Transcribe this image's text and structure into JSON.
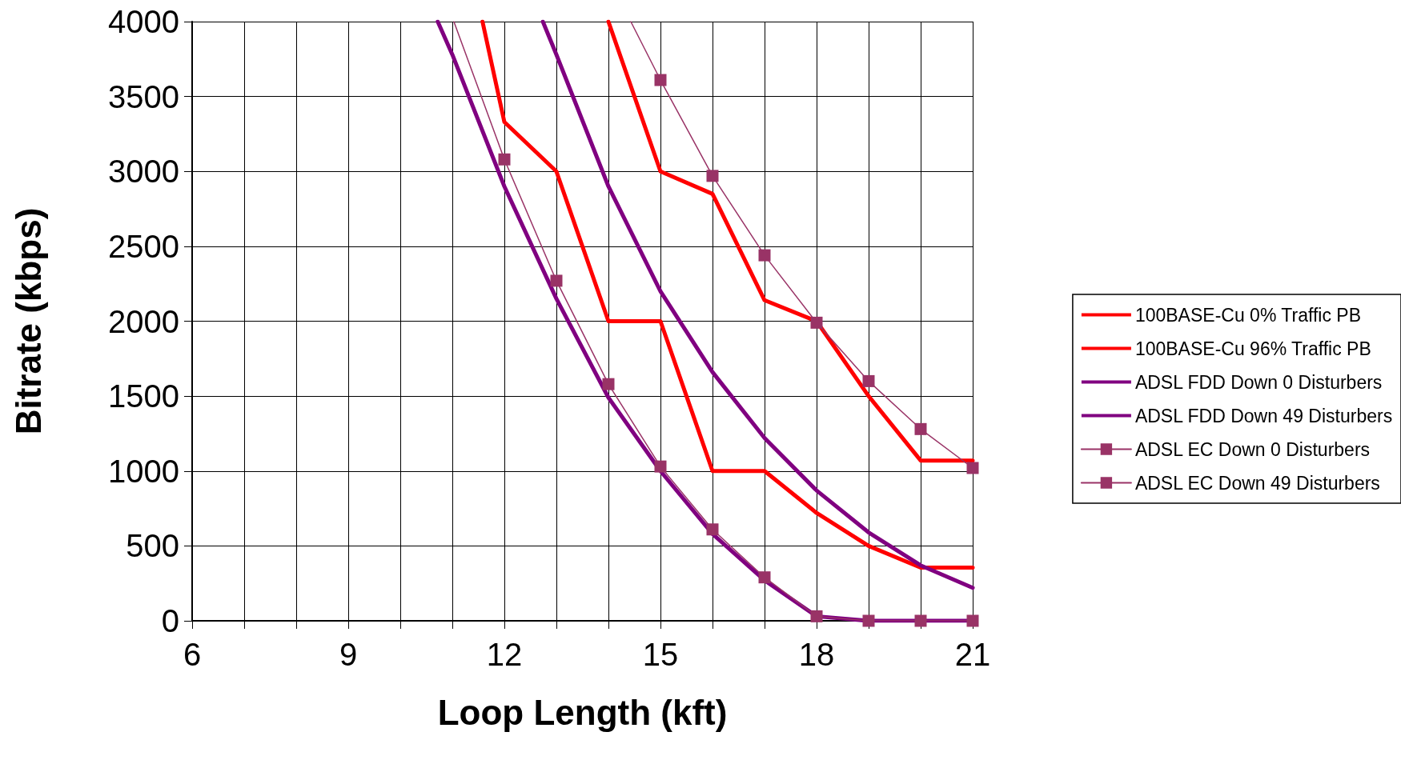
{
  "chart_data": {
    "type": "line",
    "xlabel": "Loop Length (kft)",
    "ylabel": "Bitrate (kbps)",
    "xlim": [
      6,
      21
    ],
    "xticks": [
      6,
      {
        "value": 7,
        "label": null
      },
      {
        "value": 8,
        "label": null
      },
      9,
      {
        "value": 10,
        "label": null
      },
      {
        "value": 11,
        "label": null
      },
      12,
      {
        "value": 13,
        "label": null
      },
      {
        "value": 14,
        "label": null
      },
      15,
      {
        "value": 16,
        "label": null
      },
      {
        "value": 17,
        "label": null
      },
      18,
      {
        "value": 19,
        "label": null
      },
      {
        "value": 20,
        "label": null
      },
      21
    ],
    "ylim": [
      0,
      4000
    ],
    "yticks": [
      0,
      500,
      1000,
      1500,
      2000,
      2500,
      3000,
      3500,
      4000
    ],
    "grid": true,
    "legend": "right",
    "series": [
      {
        "name": "100BASE-Cu 0% Traffic PB",
        "color": "#ff0000",
        "marker": "none",
        "x": [
          14,
          15,
          16,
          17,
          18,
          19,
          20,
          21
        ],
        "values": [
          4000,
          3000,
          2850,
          2140,
          2000,
          1500,
          1070,
          1070
        ]
      },
      {
        "name": "100BASE-Cu 96% Traffic PB",
        "color": "#ff0000",
        "marker": "none",
        "x": [
          11.58,
          12,
          13,
          14,
          15,
          16,
          17,
          18,
          19,
          20,
          21
        ],
        "values": [
          4000,
          3330,
          3000,
          2000,
          2000,
          1000,
          1000,
          720,
          500,
          355,
          355
        ]
      },
      {
        "name": "ADSL FDD Down 0 Disturbers",
        "color": "#800080",
        "marker": "none",
        "x": [
          12.74,
          13,
          14,
          15,
          16,
          17,
          18,
          19,
          20,
          21
        ],
        "values": [
          4000,
          3780,
          2900,
          2200,
          1660,
          1220,
          870,
          590,
          370,
          220
        ]
      },
      {
        "name": "ADSL FDD Down 49 Disturbers",
        "color": "#800080",
        "marker": "none",
        "x": [
          10.72,
          11,
          12,
          13,
          14,
          15,
          16,
          17,
          18,
          19,
          20,
          21
        ],
        "values": [
          4000,
          3780,
          2900,
          2150,
          1490,
          1000,
          580,
          270,
          30,
          0,
          0,
          0
        ]
      },
      {
        "name": "ADSL EC Down 0 Disturbers",
        "color": "#993366",
        "marker": "square",
        "x": [
          14.43,
          15,
          16,
          17,
          18,
          19,
          20,
          21
        ],
        "values": [
          4000,
          3610,
          2970,
          2440,
          1990,
          1600,
          1280,
          1020
        ]
      },
      {
        "name": "ADSL EC Down 49 Disturbers",
        "color": "#993366",
        "marker": "square",
        "x": [
          11.03,
          12,
          13,
          14,
          15,
          16,
          17,
          18,
          19,
          20,
          21
        ],
        "values": [
          4000,
          3080,
          2270,
          1580,
          1030,
          610,
          290,
          30,
          0,
          0,
          0
        ]
      }
    ]
  }
}
